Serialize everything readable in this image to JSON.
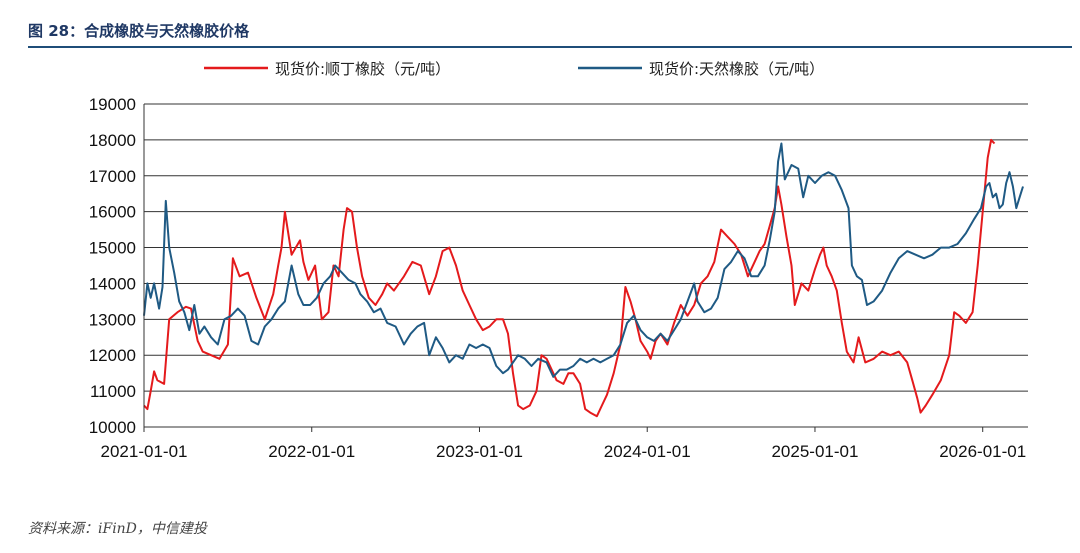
{
  "figure": {
    "title": "图 28：合成橡胶与天然橡胶价格",
    "source": "资料来源：iFinD，中信建投"
  },
  "chart_data": {
    "type": "line",
    "title": "合成橡胶与天然橡胶价格",
    "xlabel": "",
    "ylabel": "",
    "ylim": [
      10000,
      19000
    ],
    "yticks": [
      10000,
      11000,
      12000,
      13000,
      14000,
      15000,
      16000,
      17000,
      18000,
      19000
    ],
    "xlim": [
      2021.0,
      2026.27
    ],
    "xticks": [
      {
        "value": 2021.0,
        "label": "2021-01-01"
      },
      {
        "value": 2022.0,
        "label": "2022-01-01"
      },
      {
        "value": 2023.0,
        "label": "2023-01-01"
      },
      {
        "value": 2024.0,
        "label": "2024-01-01"
      },
      {
        "value": 2025.0,
        "label": "2025-01-01"
      },
      {
        "value": 2026.0,
        "label": "2026-01-01"
      }
    ],
    "grid": "horizontal",
    "legend": "top",
    "series": [
      {
        "name": "现货价:顺丁橡胶（元/吨）",
        "color": "#e41a1c",
        "points": [
          [
            2021.0,
            10600
          ],
          [
            2021.02,
            10500
          ],
          [
            2021.04,
            11000
          ],
          [
            2021.06,
            11550
          ],
          [
            2021.08,
            11300
          ],
          [
            2021.12,
            11200
          ],
          [
            2021.15,
            13000
          ],
          [
            2021.2,
            13200
          ],
          [
            2021.25,
            13350
          ],
          [
            2021.28,
            13300
          ],
          [
            2021.32,
            12400
          ],
          [
            2021.35,
            12100
          ],
          [
            2021.4,
            12000
          ],
          [
            2021.45,
            11900
          ],
          [
            2021.5,
            12300
          ],
          [
            2021.53,
            14700
          ],
          [
            2021.57,
            14200
          ],
          [
            2021.62,
            14300
          ],
          [
            2021.67,
            13600
          ],
          [
            2021.72,
            13000
          ],
          [
            2021.77,
            13700
          ],
          [
            2021.8,
            14500
          ],
          [
            2021.82,
            15000
          ],
          [
            2021.84,
            16000
          ],
          [
            2021.88,
            14800
          ],
          [
            2021.93,
            15200
          ],
          [
            2021.95,
            14600
          ],
          [
            2021.98,
            14100
          ],
          [
            2022.02,
            14500
          ],
          [
            2022.06,
            13000
          ],
          [
            2022.1,
            13200
          ],
          [
            2022.13,
            14500
          ],
          [
            2022.16,
            14200
          ],
          [
            2022.19,
            15500
          ],
          [
            2022.21,
            16100
          ],
          [
            2022.24,
            16000
          ],
          [
            2022.27,
            15000
          ],
          [
            2022.3,
            14200
          ],
          [
            2022.34,
            13600
          ],
          [
            2022.38,
            13400
          ],
          [
            2022.42,
            13700
          ],
          [
            2022.45,
            14000
          ],
          [
            2022.49,
            13800
          ],
          [
            2022.55,
            14200
          ],
          [
            2022.6,
            14600
          ],
          [
            2022.65,
            14500
          ],
          [
            2022.7,
            13700
          ],
          [
            2022.74,
            14200
          ],
          [
            2022.78,
            14900
          ],
          [
            2022.82,
            15000
          ],
          [
            2022.86,
            14500
          ],
          [
            2022.9,
            13800
          ],
          [
            2022.94,
            13400
          ],
          [
            2022.98,
            13000
          ],
          [
            2023.02,
            12700
          ],
          [
            2023.06,
            12800
          ],
          [
            2023.1,
            13000
          ],
          [
            2023.14,
            13000
          ],
          [
            2023.17,
            12600
          ],
          [
            2023.2,
            11500
          ],
          [
            2023.23,
            10600
          ],
          [
            2023.26,
            10500
          ],
          [
            2023.3,
            10600
          ],
          [
            2023.34,
            11000
          ],
          [
            2023.37,
            12000
          ],
          [
            2023.4,
            11900
          ],
          [
            2023.43,
            11600
          ],
          [
            2023.46,
            11300
          ],
          [
            2023.5,
            11200
          ],
          [
            2023.53,
            11500
          ],
          [
            2023.56,
            11500
          ],
          [
            2023.6,
            11200
          ],
          [
            2023.63,
            10500
          ],
          [
            2023.66,
            10400
          ],
          [
            2023.7,
            10300
          ],
          [
            2023.73,
            10600
          ],
          [
            2023.76,
            10900
          ],
          [
            2023.8,
            11500
          ],
          [
            2023.84,
            12300
          ],
          [
            2023.87,
            13900
          ],
          [
            2023.9,
            13500
          ],
          [
            2023.93,
            13000
          ],
          [
            2023.96,
            12400
          ],
          [
            2024.0,
            12100
          ],
          [
            2024.02,
            11900
          ],
          [
            2024.05,
            12400
          ],
          [
            2024.08,
            12600
          ],
          [
            2024.12,
            12300
          ],
          [
            2024.16,
            12900
          ],
          [
            2024.2,
            13400
          ],
          [
            2024.24,
            13100
          ],
          [
            2024.28,
            13400
          ],
          [
            2024.32,
            14000
          ],
          [
            2024.36,
            14200
          ],
          [
            2024.4,
            14600
          ],
          [
            2024.44,
            15500
          ],
          [
            2024.48,
            15300
          ],
          [
            2024.52,
            15100
          ],
          [
            2024.56,
            14800
          ],
          [
            2024.6,
            14200
          ],
          [
            2024.64,
            14600
          ],
          [
            2024.67,
            14900
          ],
          [
            2024.7,
            15100
          ],
          [
            2024.73,
            15600
          ],
          [
            2024.76,
            16100
          ],
          [
            2024.78,
            16700
          ],
          [
            2024.8,
            16200
          ],
          [
            2024.83,
            15300
          ],
          [
            2024.86,
            14500
          ],
          [
            2024.88,
            13400
          ],
          [
            2024.92,
            14000
          ],
          [
            2024.96,
            13800
          ],
          [
            2025.0,
            14400
          ],
          [
            2025.03,
            14800
          ],
          [
            2025.05,
            15000
          ],
          [
            2025.07,
            14500
          ],
          [
            2025.1,
            14200
          ],
          [
            2025.13,
            13800
          ],
          [
            2025.16,
            12900
          ],
          [
            2025.19,
            12100
          ],
          [
            2025.23,
            11800
          ],
          [
            2025.26,
            12500
          ],
          [
            2025.3,
            11800
          ],
          [
            2025.35,
            11900
          ],
          [
            2025.4,
            12100
          ],
          [
            2025.45,
            12000
          ],
          [
            2025.5,
            12100
          ],
          [
            2025.55,
            11800
          ],
          [
            2025.58,
            11300
          ],
          [
            2025.61,
            10800
          ],
          [
            2025.63,
            10400
          ],
          [
            2025.66,
            10600
          ],
          [
            2025.7,
            10900
          ],
          [
            2025.75,
            11300
          ],
          [
            2025.8,
            12000
          ],
          [
            2025.83,
            13200
          ],
          [
            2025.86,
            13100
          ],
          [
            2025.9,
            12900
          ],
          [
            2025.94,
            13200
          ],
          [
            2025.97,
            14500
          ],
          [
            2026.0,
            16000
          ],
          [
            2026.03,
            17500
          ],
          [
            2026.05,
            18000
          ],
          [
            2026.07,
            17900
          ]
        ]
      },
      {
        "name": "现货价:天然橡胶（元/吨）",
        "color": "#1f5a84",
        "points": [
          [
            2021.0,
            13100
          ],
          [
            2021.02,
            14000
          ],
          [
            2021.04,
            13600
          ],
          [
            2021.06,
            14000
          ],
          [
            2021.09,
            13300
          ],
          [
            2021.11,
            13900
          ],
          [
            2021.13,
            16300
          ],
          [
            2021.15,
            15000
          ],
          [
            2021.18,
            14300
          ],
          [
            2021.21,
            13500
          ],
          [
            2021.24,
            13200
          ],
          [
            2021.27,
            12700
          ],
          [
            2021.3,
            13400
          ],
          [
            2021.33,
            12600
          ],
          [
            2021.36,
            12800
          ],
          [
            2021.4,
            12500
          ],
          [
            2021.44,
            12300
          ],
          [
            2021.48,
            13000
          ],
          [
            2021.52,
            13100
          ],
          [
            2021.56,
            13300
          ],
          [
            2021.6,
            13100
          ],
          [
            2021.64,
            12400
          ],
          [
            2021.68,
            12300
          ],
          [
            2021.72,
            12800
          ],
          [
            2021.76,
            13000
          ],
          [
            2021.8,
            13300
          ],
          [
            2021.84,
            13500
          ],
          [
            2021.88,
            14500
          ],
          [
            2021.92,
            13700
          ],
          [
            2021.95,
            13400
          ],
          [
            2021.99,
            13400
          ],
          [
            2022.03,
            13600
          ],
          [
            2022.07,
            14000
          ],
          [
            2022.11,
            14200
          ],
          [
            2022.14,
            14500
          ],
          [
            2022.18,
            14300
          ],
          [
            2022.22,
            14100
          ],
          [
            2022.26,
            14000
          ],
          [
            2022.29,
            13700
          ],
          [
            2022.33,
            13500
          ],
          [
            2022.37,
            13200
          ],
          [
            2022.41,
            13300
          ],
          [
            2022.45,
            12900
          ],
          [
            2022.5,
            12800
          ],
          [
            2022.55,
            12300
          ],
          [
            2022.59,
            12600
          ],
          [
            2022.63,
            12800
          ],
          [
            2022.67,
            12900
          ],
          [
            2022.7,
            12000
          ],
          [
            2022.74,
            12500
          ],
          [
            2022.78,
            12200
          ],
          [
            2022.82,
            11800
          ],
          [
            2022.86,
            12000
          ],
          [
            2022.9,
            11900
          ],
          [
            2022.94,
            12300
          ],
          [
            2022.98,
            12200
          ],
          [
            2023.02,
            12300
          ],
          [
            2023.06,
            12200
          ],
          [
            2023.1,
            11700
          ],
          [
            2023.14,
            11500
          ],
          [
            2023.17,
            11600
          ],
          [
            2023.2,
            11800
          ],
          [
            2023.23,
            12000
          ],
          [
            2023.27,
            11900
          ],
          [
            2023.31,
            11700
          ],
          [
            2023.35,
            11900
          ],
          [
            2023.4,
            11800
          ],
          [
            2023.44,
            11400
          ],
          [
            2023.48,
            11600
          ],
          [
            2023.52,
            11600
          ],
          [
            2023.56,
            11700
          ],
          [
            2023.6,
            11900
          ],
          [
            2023.64,
            11800
          ],
          [
            2023.68,
            11900
          ],
          [
            2023.72,
            11800
          ],
          [
            2023.76,
            11900
          ],
          [
            2023.8,
            12000
          ],
          [
            2023.84,
            12300
          ],
          [
            2023.88,
            12900
          ],
          [
            2023.92,
            13100
          ],
          [
            2023.96,
            12700
          ],
          [
            2024.0,
            12500
          ],
          [
            2024.04,
            12400
          ],
          [
            2024.08,
            12600
          ],
          [
            2024.12,
            12400
          ],
          [
            2024.16,
            12700
          ],
          [
            2024.2,
            13000
          ],
          [
            2024.24,
            13500
          ],
          [
            2024.28,
            14000
          ],
          [
            2024.3,
            13500
          ],
          [
            2024.34,
            13200
          ],
          [
            2024.38,
            13300
          ],
          [
            2024.42,
            13600
          ],
          [
            2024.46,
            14400
          ],
          [
            2024.5,
            14600
          ],
          [
            2024.54,
            14900
          ],
          [
            2024.58,
            14700
          ],
          [
            2024.62,
            14200
          ],
          [
            2024.66,
            14200
          ],
          [
            2024.7,
            14500
          ],
          [
            2024.73,
            15200
          ],
          [
            2024.76,
            16000
          ],
          [
            2024.78,
            17400
          ],
          [
            2024.8,
            17900
          ],
          [
            2024.82,
            16900
          ],
          [
            2024.86,
            17300
          ],
          [
            2024.9,
            17200
          ],
          [
            2024.93,
            16400
          ],
          [
            2024.96,
            17000
          ],
          [
            2025.0,
            16800
          ],
          [
            2025.04,
            17000
          ],
          [
            2025.08,
            17100
          ],
          [
            2025.12,
            17000
          ],
          [
            2025.16,
            16600
          ],
          [
            2025.2,
            16100
          ],
          [
            2025.22,
            14500
          ],
          [
            2025.25,
            14200
          ],
          [
            2025.28,
            14100
          ],
          [
            2025.31,
            13400
          ],
          [
            2025.35,
            13500
          ],
          [
            2025.4,
            13800
          ],
          [
            2025.45,
            14300
          ],
          [
            2025.5,
            14700
          ],
          [
            2025.55,
            14900
          ],
          [
            2025.6,
            14800
          ],
          [
            2025.65,
            14700
          ],
          [
            2025.7,
            14800
          ],
          [
            2025.75,
            15000
          ],
          [
            2025.8,
            15000
          ],
          [
            2025.85,
            15100
          ],
          [
            2025.9,
            15400
          ],
          [
            2025.95,
            15800
          ],
          [
            2025.99,
            16100
          ],
          [
            2026.02,
            16700
          ],
          [
            2026.04,
            16800
          ],
          [
            2026.06,
            16400
          ],
          [
            2026.08,
            16500
          ],
          [
            2026.1,
            16100
          ],
          [
            2026.12,
            16200
          ],
          [
            2026.14,
            16800
          ],
          [
            2026.16,
            17100
          ],
          [
            2026.18,
            16700
          ],
          [
            2026.2,
            16100
          ],
          [
            2026.22,
            16400
          ],
          [
            2026.24,
            16700
          ]
        ]
      }
    ]
  }
}
